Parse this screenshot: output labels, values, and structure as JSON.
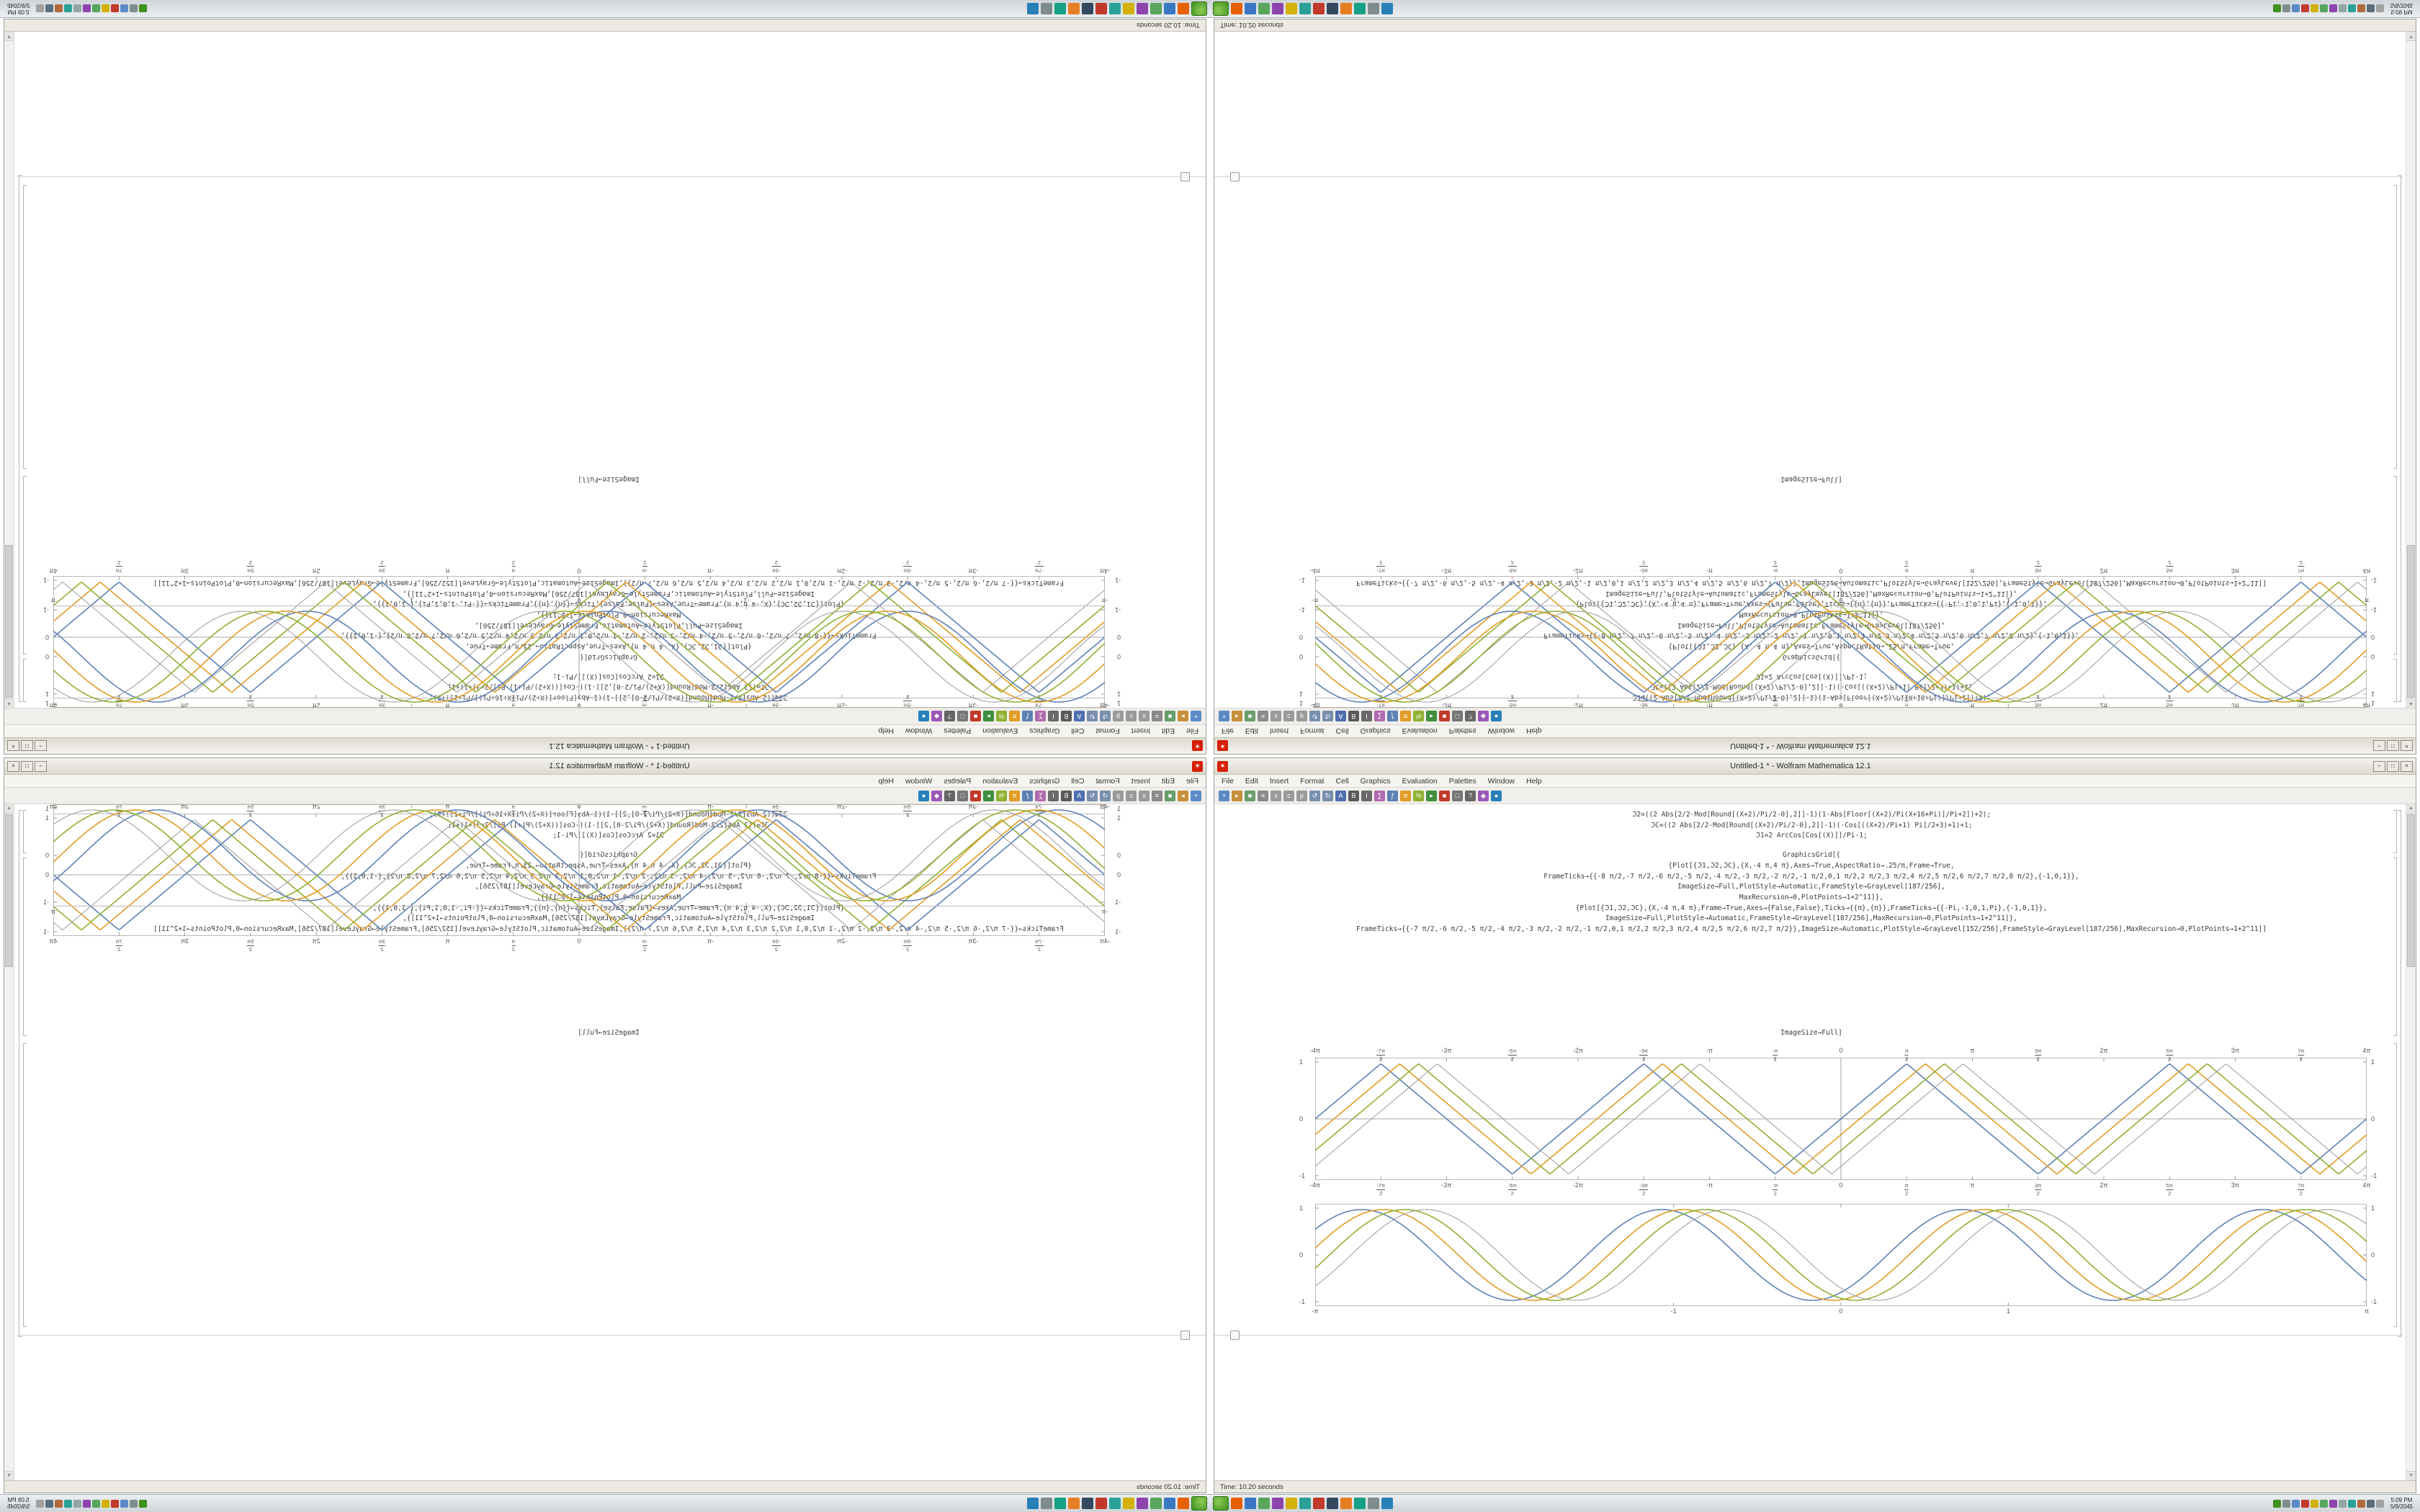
{
  "window": {
    "title": "Untitled-1 * - Wolfram Mathematica 12.1",
    "app_glyph": "✶",
    "buttons": {
      "minimize": "–",
      "maximize": "□",
      "close": "×"
    },
    "menus": [
      "File",
      "Edit",
      "Insert",
      "Format",
      "Cell",
      "Graphics",
      "Evaluation",
      "Palettes",
      "Window",
      "Help"
    ],
    "status_text": "Time: 10.20 seconds"
  },
  "scrollbar": {
    "up": "▲",
    "down": "▼"
  },
  "toolbar": {
    "icons": [
      {
        "name": "new-notebook-icon",
        "glyph": "+",
        "bg": "#5b8ac6"
      },
      {
        "name": "open-icon",
        "glyph": "▸",
        "bg": "#c78f3c"
      },
      {
        "name": "save-icon",
        "glyph": "■",
        "bg": "#6a9e6a"
      },
      {
        "name": "print-icon",
        "glyph": "≡",
        "bg": "#8a8a8a"
      },
      {
        "name": "cut-icon",
        "glyph": "x",
        "bg": "#9a9a9a"
      },
      {
        "name": "copy-icon",
        "glyph": "c",
        "bg": "#9a9a9a"
      },
      {
        "name": "paste-icon",
        "glyph": "p",
        "bg": "#9a9a9a"
      },
      {
        "name": "undo-icon",
        "glyph": "↺",
        "bg": "#7a8fae"
      },
      {
        "name": "redo-icon",
        "glyph": "↻",
        "bg": "#7a8fae"
      },
      {
        "name": "text-style-icon",
        "glyph": "A",
        "bg": "#4f6fae"
      },
      {
        "name": "bold-icon",
        "glyph": "B",
        "bg": "#5a5a5a"
      },
      {
        "name": "italic-icon",
        "glyph": "I",
        "bg": "#6a6a6a"
      },
      {
        "name": "sum-icon",
        "glyph": "∑",
        "bg": "#b06aae"
      },
      {
        "name": "function-icon",
        "glyph": "ƒ",
        "bg": "#5e81b5"
      },
      {
        "name": "pi-icon",
        "glyph": "π",
        "bg": "#e19c24"
      },
      {
        "name": "percent-icon",
        "glyph": "%",
        "bg": "#8fb032"
      },
      {
        "name": "evaluate-icon",
        "glyph": "▸",
        "bg": "#3f8f3f"
      },
      {
        "name": "abort-icon",
        "glyph": "■",
        "bg": "#c0392b"
      },
      {
        "name": "new-cell-icon",
        "glyph": "□",
        "bg": "#777777"
      },
      {
        "name": "find-icon",
        "glyph": "?",
        "bg": "#666666"
      },
      {
        "name": "palette-icon",
        "glyph": "◆",
        "bg": "#9b59b6"
      },
      {
        "name": "help-icon",
        "glyph": "●",
        "bg": "#2980b9"
      }
    ]
  },
  "cells": {
    "cell1": [
      "ℑ2=((2 Abs[2/2-Mod[Round[(X+2)/Pi/2-0],2]]-1)(1-Abs[Floor[(X+2)/Pi(X+16+Pi)]/Pi+2])+2);",
      "ℑC=((2 Abs[2/2-Mod[Round[(X+2)/Pi/2-0],2]]-1)(-Cos[((X+2)/Pi+1) Pi]/2+3)+1)+1;",
      "ℑ1=2 ArcCos[Cos[(X)]]/Pi-1;"
    ],
    "cell2": [
      "GraphicsGrid[{",
      "{Plot[{ℑ1,ℑ2,ℑC},{X,-4 π,4 π},Axes→True,AspectRatio→.25/π,Frame→True,",
      "FrameTicks→{{-8 π/2,-7 π/2,-6 π/2,-5 π/2,-4 π/2,-3 π/2,-2 π/2,-1 π/2,0,1 π/2,2 π/2,3 π/2,4 π/2,5 π/2,6 π/2,7 π/2,8 π/2},{-1,0,1}},",
      "ImageSize→Full,PlotStyle→Automatic,FrameStyle→GrayLevel[187/256],",
      "MaxRecursion→0,PlotPoints→1+2^11]},",
      "{Plot[{ℑ1,ℑ2,ℑC},{X,-4 π,4 π},Frame→True,Axes→{False,False},Ticks→{{π},{π}},FrameTicks→{{-Pi,-1,0,1,Pi},{-1,0,1}},",
      "ImageSize→Full,PlotStyle→Automatic,FrameStyle→GrayLevel[187/256],MaxRecursion→0,PlotPoints→1+2^11]},",
      "FrameTicks→{{-7 π/2,-6 π/2,-5 π/2,-4 π/2,-3 π/2,-2 π/2,-1 π/2,0,1 π/2,2 π/2,3 π/2,4 π/2,5 π/2,6 π/2,7 π/2}},ImageSize→Automatic,PlotStyle→GrayLevel[152/256],FrameStyle→GrayLevel[187/256],MaxRecursion→0,PlotPoints→1+2^11]]"
    ],
    "caption": "ImageSize→Full]"
  },
  "chart_data": [
    {
      "id": "plotA",
      "type": "line",
      "waveform": "triangle",
      "title": "",
      "xlabel": "",
      "ylabel": "",
      "x_min": -12.566,
      "x_max": 12.566,
      "ylim": [
        -1,
        1
      ],
      "labels_top": true,
      "axes": true,
      "x_ticks": [
        {
          "label": "-4π",
          "v": -12.566
        },
        {
          "num": "-7π",
          "den": "2",
          "v": -10.996
        },
        {
          "label": "-3π",
          "v": -9.425
        },
        {
          "num": "-5π",
          "den": "2",
          "v": -7.854
        },
        {
          "label": "-2π",
          "v": -6.283
        },
        {
          "num": "-3π",
          "den": "2",
          "v": -4.712
        },
        {
          "label": "-π",
          "v": -3.1416
        },
        {
          "num": "-π",
          "den": "2",
          "v": -1.5708
        },
        {
          "label": "0",
          "v": 0
        },
        {
          "num": "π",
          "den": "2",
          "v": 1.5708
        },
        {
          "label": "π",
          "v": 3.1416
        },
        {
          "num": "3π",
          "den": "2",
          "v": 4.712
        },
        {
          "label": "2π",
          "v": 6.283
        },
        {
          "num": "5π",
          "den": "2",
          "v": 7.854
        },
        {
          "label": "3π",
          "v": 9.425
        },
        {
          "num": "7π",
          "den": "2",
          "v": 10.996
        },
        {
          "label": "4π",
          "v": 12.566
        }
      ],
      "y_ticks": [
        {
          "label": "-1",
          "v": -1
        },
        {
          "label": "0",
          "v": 0
        },
        {
          "label": "1",
          "v": 1
        }
      ],
      "series": [
        {
          "name": "triangle-wave-1",
          "color": "#5e81b5",
          "phase": 0,
          "width": 1.6
        },
        {
          "name": "triangle-wave-2",
          "color": "#e19c24",
          "phase": 0.45,
          "width": 1.6
        },
        {
          "name": "triangle-wave-3",
          "color": "#8fb032",
          "phase": 0.9,
          "width": 1.6
        },
        {
          "name": "triangle-wave-gray",
          "color": "#9a9a9a",
          "phase": 1.35,
          "width": 1
        }
      ]
    },
    {
      "id": "plotB",
      "type": "line",
      "waveform": "sine",
      "cycles": 3.5,
      "title": "",
      "xlabel": "",
      "ylabel": "",
      "x_min": -3.1416,
      "x_max": 3.1416,
      "ylim": [
        -1,
        1
      ],
      "labels_top": false,
      "axes": false,
      "x_ticks": [
        {
          "label": "-π",
          "v": -3.1416
        },
        {
          "label": "-1",
          "v": -1
        },
        {
          "label": "0",
          "v": 0
        },
        {
          "label": "1",
          "v": 1
        },
        {
          "label": "π",
          "v": 3.1416
        }
      ],
      "y_ticks": [
        {
          "label": "-1",
          "v": -1
        },
        {
          "label": "0",
          "v": 0
        },
        {
          "label": "1",
          "v": 1
        }
      ],
      "series": [
        {
          "name": "sine-wave-1",
          "color": "#5e81b5",
          "phase": 0,
          "width": 1.6
        },
        {
          "name": "sine-wave-2",
          "color": "#e19c24",
          "phase": 0.45,
          "width": 1.6
        },
        {
          "name": "sine-wave-3",
          "color": "#8fb032",
          "phase": 0.9,
          "width": 1.6
        },
        {
          "name": "sine-wave-gray",
          "color": "#9a9a9a",
          "phase": 1.35,
          "width": 1
        }
      ]
    }
  ],
  "taskbar": {
    "clock_time": "5:09 PM",
    "clock_date": "5/9/2045",
    "launcher_colors": [
      "#e66000",
      "#3b78c3",
      "#58a55c",
      "#8e44ad",
      "#d4b106",
      "#2aa198",
      "#c0392b",
      "#34495e",
      "#e67e22",
      "#16a085",
      "#7f8c8d",
      "#2980b9"
    ],
    "tray_colors": [
      "#3f8f1f",
      "#7f8c8d",
      "#5b8ac6",
      "#c0392b",
      "#d4b106",
      "#58a55c",
      "#8e44ad",
      "#95a5a6",
      "#2aa198",
      "#b06a3c",
      "#5d6d7e",
      "#a0a0a0"
    ]
  },
  "colors": {
    "plot_blue": "#5e81b5",
    "plot_gold": "#e19c24",
    "plot_green": "#8fb032",
    "plot_gray": "#9a9a9a",
    "frame_gray": "#b9b9b9",
    "app_red": "#d61f06"
  }
}
